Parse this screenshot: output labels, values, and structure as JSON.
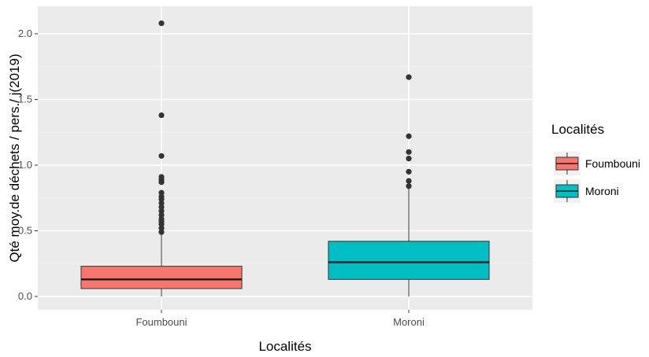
{
  "chart_data": {
    "type": "boxplot",
    "xlabel": "Localités",
    "ylabel": "Qté moy.de déchets / pers./ j(2019)",
    "ylim": [
      -0.1,
      2.1
    ],
    "yticks": [
      0.0,
      0.5,
      1.0,
      1.5,
      2.0
    ],
    "ytick_labels": [
      "0.0",
      "0.5",
      "1.0",
      "1.5",
      "2.0"
    ],
    "categories": [
      "Foumbouni",
      "Moroni"
    ],
    "grid": true,
    "legend": {
      "title": "Localités",
      "placement": "right",
      "entries": [
        "Foumbouni",
        "Moroni"
      ]
    },
    "series": [
      {
        "name": "Foumbouni",
        "color": "#f8766d",
        "min": 0.0,
        "q1": 0.06,
        "median": 0.13,
        "q3": 0.23,
        "whisker_high": 0.47,
        "outliers": [
          0.49,
          0.52,
          0.55,
          0.57,
          0.59,
          0.62,
          0.65,
          0.68,
          0.71,
          0.74,
          0.76,
          0.79,
          0.87,
          0.89,
          0.91,
          1.07,
          1.38,
          2.08
        ]
      },
      {
        "name": "Moroni",
        "color": "#00bfc4",
        "min": 0.0,
        "q1": 0.13,
        "median": 0.26,
        "q3": 0.42,
        "whisker_high": 0.82,
        "outliers": [
          0.84,
          0.88,
          0.95,
          1.05,
          1.1,
          1.22,
          1.67
        ]
      }
    ]
  }
}
